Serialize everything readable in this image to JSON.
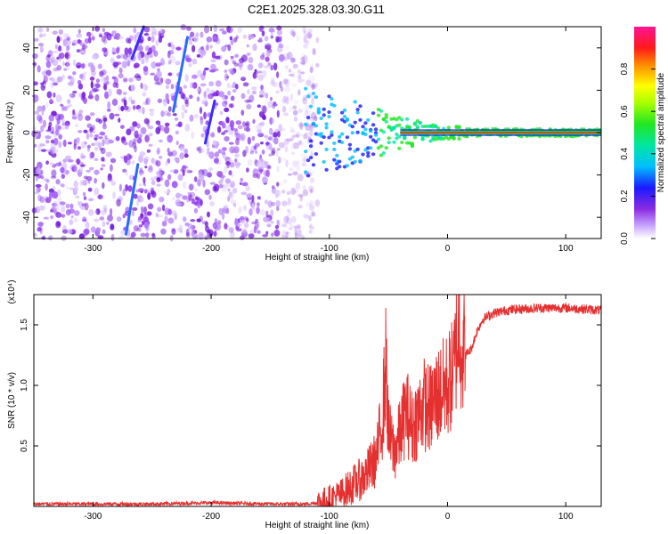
{
  "title": "C2E1.2025.328.03.30.G11",
  "chart_data": [
    {
      "type": "heatmap",
      "xlabel": "Height of straight line (km)",
      "ylabel": "Frequency (Hz)",
      "xlim": [
        -350,
        130
      ],
      "ylim": [
        -50,
        50
      ],
      "x_ticks": [
        -300,
        -200,
        -100,
        0,
        100
      ],
      "x_tick_labels": [
        "-300",
        "-200",
        "-100",
        "0",
        "100"
      ],
      "y_ticks": [
        -40,
        -20,
        0,
        20,
        40
      ],
      "y_tick_labels": [
        "-40",
        "-20",
        "0",
        "20",
        "40"
      ],
      "colorbar": {
        "label": "Normalized spectral amplitude",
        "range": [
          0,
          1
        ],
        "ticks": [
          0.0,
          0.2,
          0.4,
          0.6,
          0.8
        ],
        "tick_labels": [
          "0.0",
          "0.2",
          "0.4",
          "0.6",
          "0.8"
        ],
        "colormap": "rainbow"
      },
      "features": {
        "noise_region_x": [
          -350,
          -110
        ],
        "carrier_frequency_hz": 0,
        "carrier_start_x": -120,
        "streaks": [
          {
            "x": [
              -272,
              -262
            ],
            "y": [
              -48,
              -15
            ]
          },
          {
            "x": [
              -267,
              -257
            ],
            "y": [
              35,
              50
            ]
          },
          {
            "x": [
              -232,
              -220
            ],
            "y": [
              10,
              45
            ]
          },
          {
            "x": [
              -205,
              -197
            ],
            "y": [
              -5,
              15
            ]
          }
        ]
      }
    },
    {
      "type": "line",
      "xlabel": "Height of straight line (km)",
      "ylabel": "SNR (10 * v/v)",
      "scale_label": "(x10⁴)",
      "xlim": [
        -350,
        130
      ],
      "ylim": [
        0,
        1.75
      ],
      "x_ticks": [
        -300,
        -200,
        -100,
        0,
        100
      ],
      "x_tick_labels": [
        "-300",
        "-200",
        "-100",
        "0",
        "100"
      ],
      "y_ticks": [
        0.5,
        1.0,
        1.5
      ],
      "y_tick_labels": [
        "0.5",
        "1.0",
        "1.5"
      ],
      "color": "#e53030",
      "x": [
        -350,
        -300,
        -250,
        -200,
        -150,
        -120,
        -110,
        -100,
        -90,
        -80,
        -70,
        -60,
        -55,
        -52,
        -50,
        -45,
        -40,
        -35,
        -30,
        -25,
        -20,
        -15,
        -10,
        -5,
        0,
        5,
        10,
        12,
        15,
        20,
        25,
        30,
        40,
        50,
        60,
        80,
        100,
        130
      ],
      "y": [
        0.02,
        0.02,
        0.02,
        0.03,
        0.02,
        0.02,
        0.03,
        0.06,
        0.1,
        0.18,
        0.25,
        0.4,
        0.75,
        1.2,
        0.6,
        0.45,
        0.6,
        0.8,
        0.65,
        0.75,
        0.85,
        0.8,
        0.9,
        0.95,
        1.0,
        1.1,
        1.55,
        1.3,
        1.25,
        1.3,
        1.45,
        1.55,
        1.6,
        1.62,
        1.63,
        1.64,
        1.64,
        1.62
      ]
    }
  ]
}
